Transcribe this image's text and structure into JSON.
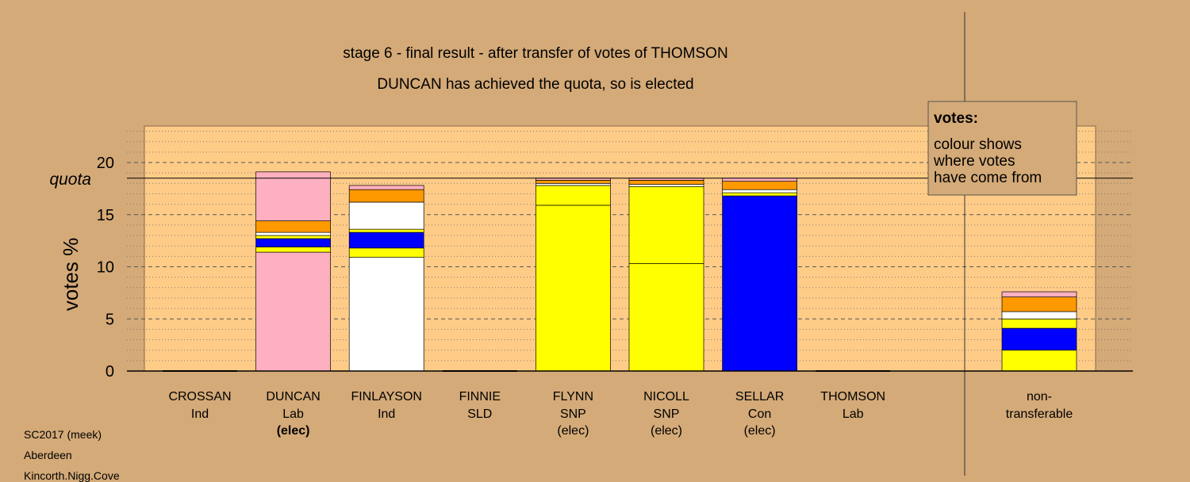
{
  "chart_data": {
    "type": "bar",
    "stacked": true,
    "title": "stage 6 - final result - after transfer of votes of THOMSON",
    "subtitle": "DUNCAN has achieved the quota, so is elected",
    "ylabel": "votes %",
    "ylim": [
      0,
      23.5
    ],
    "yticks": [
      0,
      5,
      10,
      15,
      20
    ],
    "quota": 18.5,
    "quota_label": "quota",
    "grid": "dashed major every 5, dotted minor every 1",
    "legend": {
      "title": "votes:",
      "lines": [
        "colour shows",
        "where votes",
        "have come from"
      ],
      "placement": "top-right"
    },
    "source_colors": {
      "Lab": "#ffb0c0",
      "Ind": "#ffffff",
      "SNP": "#ffff00",
      "Con": "#0000ff",
      "SLD": "#ff9900",
      "other": "#ff9000"
    },
    "candidates": [
      {
        "name": "CROSSAN",
        "party": "Ind",
        "status": "",
        "segments": []
      },
      {
        "name": "DUNCAN",
        "party": "Lab",
        "status": "(elec)",
        "status_bold": true,
        "segments": [
          {
            "source": "Lab",
            "color": "#ffb0c0",
            "value": 11.4
          },
          {
            "source": "SNP",
            "color": "#ffff00",
            "value": 0.5
          },
          {
            "source": "Con",
            "color": "#0000ff",
            "value": 0.8
          },
          {
            "source": "SNP",
            "color": "#ffff00",
            "value": 0.3
          },
          {
            "source": "Ind",
            "color": "#ffffff",
            "value": 0.3
          },
          {
            "source": "SLD",
            "color": "#ff9900",
            "value": 1.1
          },
          {
            "source": "Lab",
            "color": "#ffb0c0",
            "value": 4.7
          }
        ]
      },
      {
        "name": "FINLAYSON",
        "party": "Ind",
        "status": "",
        "segments": [
          {
            "source": "Ind",
            "color": "#ffffff",
            "value": 10.9
          },
          {
            "source": "SNP",
            "color": "#ffff00",
            "value": 0.9
          },
          {
            "source": "Con",
            "color": "#0000ff",
            "value": 1.5
          },
          {
            "source": "SNP",
            "color": "#ffff00",
            "value": 0.3
          },
          {
            "source": "Ind",
            "color": "#ffffff",
            "value": 2.6
          },
          {
            "source": "SLD",
            "color": "#ff9900",
            "value": 1.2
          },
          {
            "source": "Lab",
            "color": "#ffb0c0",
            "value": 0.4
          }
        ]
      },
      {
        "name": "FINNIE",
        "party": "SLD",
        "status": "",
        "segments": []
      },
      {
        "name": "FLYNN",
        "party": "SNP",
        "status": "(elec)",
        "segments": [
          {
            "source": "SNP",
            "color": "#ffff00",
            "value": 15.9
          },
          {
            "source": "SNP",
            "color": "#ffff00",
            "value": 1.9
          },
          {
            "source": "Ind",
            "color": "#ffffff",
            "value": 0.2
          },
          {
            "source": "SLD",
            "color": "#ff9900",
            "value": 0.3
          },
          {
            "source": "Lab",
            "color": "#ffb0c0",
            "value": 0.2
          }
        ]
      },
      {
        "name": "NICOLL",
        "party": "SNP",
        "status": "(elec)",
        "segments": [
          {
            "source": "SNP",
            "color": "#ffff00",
            "value": 10.3
          },
          {
            "source": "SNP",
            "color": "#ffff00",
            "value": 7.4
          },
          {
            "source": "Ind",
            "color": "#ffffff",
            "value": 0.2
          },
          {
            "source": "SLD",
            "color": "#ff9900",
            "value": 0.4
          },
          {
            "source": "Lab",
            "color": "#ffb0c0",
            "value": 0.2
          }
        ]
      },
      {
        "name": "SELLAR",
        "party": "Con",
        "status": "(elec)",
        "segments": [
          {
            "source": "Con",
            "color": "#0000ff",
            "value": 16.8
          },
          {
            "source": "SNP",
            "color": "#ffff00",
            "value": 0.3
          },
          {
            "source": "Ind",
            "color": "#ffffff",
            "value": 0.3
          },
          {
            "source": "SLD",
            "color": "#ff9900",
            "value": 0.8
          },
          {
            "source": "Lab",
            "color": "#ffb0c0",
            "value": 0.3
          }
        ]
      },
      {
        "name": "THOMSON",
        "party": "Lab",
        "status": "",
        "segments": []
      }
    ],
    "nontransferable": {
      "label_line1": "non-",
      "label_line2": "transferable",
      "segments": [
        {
          "source": "SNP",
          "color": "#ffff00",
          "value": 2.0
        },
        {
          "source": "Con",
          "color": "#0000ff",
          "value": 2.1
        },
        {
          "source": "SNP",
          "color": "#ffff00",
          "value": 0.9
        },
        {
          "source": "Ind",
          "color": "#ffffff",
          "value": 0.7
        },
        {
          "source": "SLD",
          "color": "#ff9900",
          "value": 1.4
        },
        {
          "source": "Lab",
          "color": "#ffb0c0",
          "value": 0.5
        }
      ]
    }
  },
  "footer": {
    "line1": "SC2017 (meek)",
    "line2": "Aberdeen",
    "line3": "Kincorth.Nigg.Cove"
  }
}
